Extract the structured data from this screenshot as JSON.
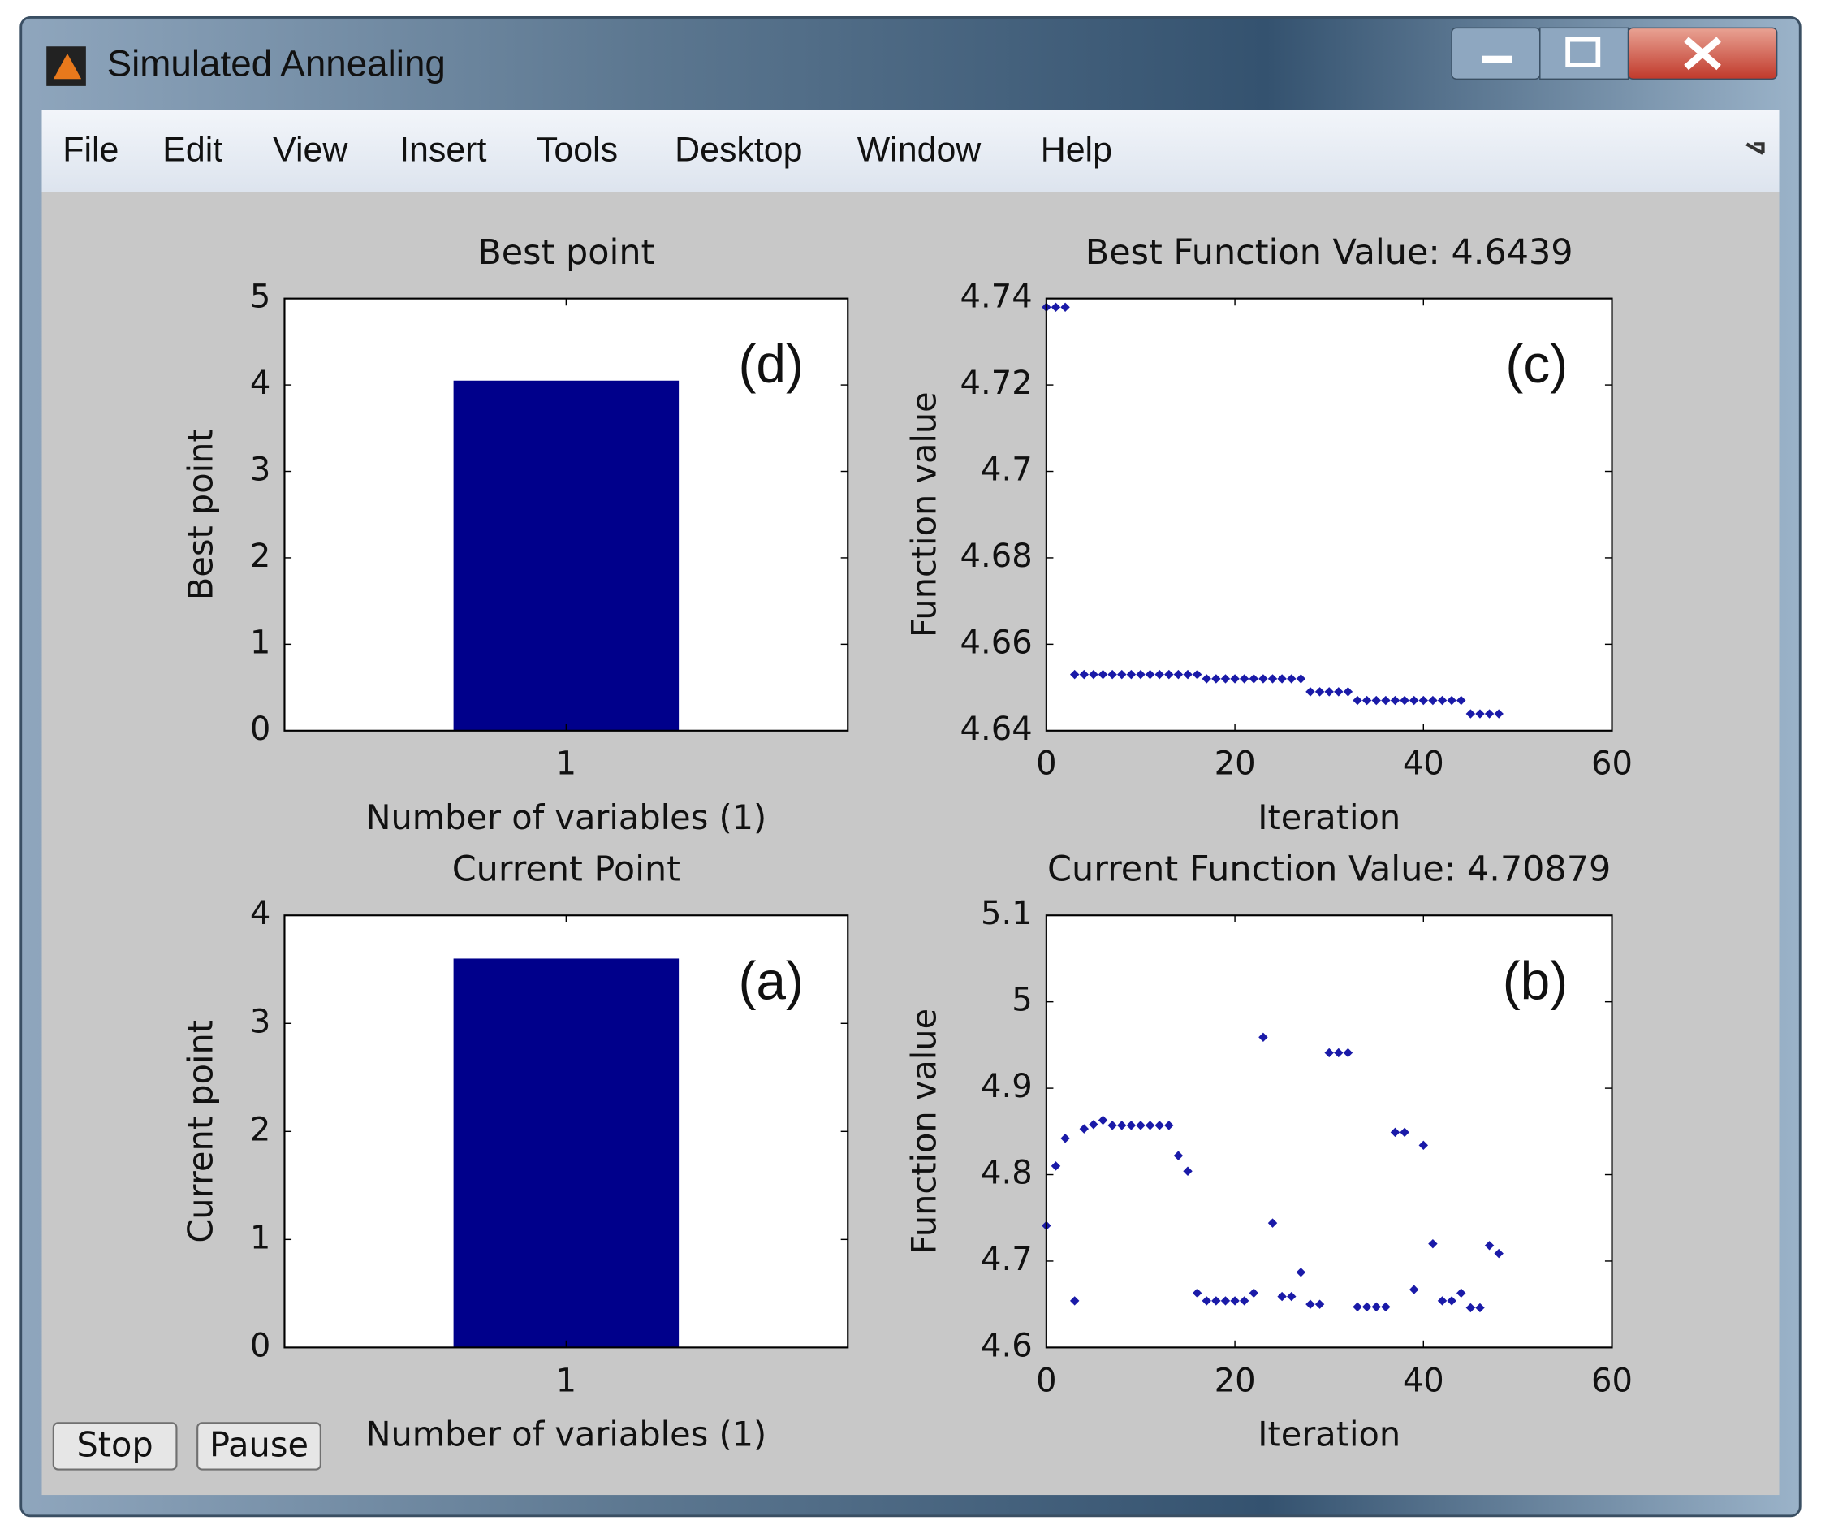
{
  "window": {
    "title": "Simulated Annealing",
    "menu": [
      "File",
      "Edit",
      "View",
      "Insert",
      "Tools",
      "Desktop",
      "Window",
      "Help"
    ],
    "buttons": [
      "Stop",
      "Pause"
    ]
  },
  "chart_data": [
    {
      "type": "bar",
      "title": "Best point",
      "annotation": "(d)",
      "xlabel": "Number of variables (1)",
      "ylabel": "Best point",
      "categories": [
        "1"
      ],
      "values": [
        4.05
      ],
      "color": "#00008b",
      "ylim": [
        0,
        5
      ],
      "yticks": [
        0,
        1,
        2,
        3,
        4,
        5
      ]
    },
    {
      "type": "scatter",
      "title": "Best Function Value: 4.6439",
      "annotation": "(c)",
      "xlabel": "Iteration",
      "ylabel": "Function value",
      "color": "#1a1aa8",
      "xlim": [
        0,
        60
      ],
      "xticks": [
        0,
        20,
        40,
        60
      ],
      "ylim": [
        4.64,
        4.74
      ],
      "yticks": [
        4.64,
        4.66,
        4.68,
        4.7,
        4.72,
        4.74
      ],
      "x": [
        0,
        1,
        2,
        3,
        4,
        5,
        6,
        7,
        8,
        9,
        10,
        11,
        12,
        13,
        14,
        15,
        16,
        17,
        18,
        19,
        20,
        21,
        22,
        23,
        24,
        25,
        26,
        27,
        28,
        29,
        30,
        31,
        32,
        33,
        34,
        35,
        36,
        37,
        38,
        39,
        40,
        41,
        42,
        43,
        44,
        45,
        46,
        47,
        48
      ],
      "values": [
        4.738,
        4.738,
        4.738,
        4.653,
        4.653,
        4.653,
        4.653,
        4.653,
        4.653,
        4.653,
        4.653,
        4.653,
        4.653,
        4.653,
        4.653,
        4.653,
        4.653,
        4.652,
        4.652,
        4.652,
        4.652,
        4.652,
        4.652,
        4.652,
        4.652,
        4.652,
        4.652,
        4.652,
        4.649,
        4.649,
        4.649,
        4.649,
        4.649,
        4.647,
        4.647,
        4.647,
        4.647,
        4.647,
        4.647,
        4.647,
        4.647,
        4.647,
        4.647,
        4.647,
        4.647,
        4.6439,
        4.6439,
        4.6439,
        4.6439
      ]
    },
    {
      "type": "bar",
      "title": "Current Point",
      "annotation": "(a)",
      "xlabel": "Number of variables (1)",
      "ylabel": "Current point",
      "categories": [
        "1"
      ],
      "values": [
        3.6
      ],
      "color": "#00008b",
      "ylim": [
        0,
        4
      ],
      "yticks": [
        0,
        1,
        2,
        3,
        4
      ]
    },
    {
      "type": "scatter",
      "title": "Current Function Value: 4.70879",
      "annotation": "(b)",
      "xlabel": "Iteration",
      "ylabel": "Function value",
      "color": "#1a1aa8",
      "xlim": [
        0,
        60
      ],
      "xticks": [
        0,
        20,
        40,
        60
      ],
      "ylim": [
        4.6,
        5.1
      ],
      "yticks": [
        4.6,
        4.7,
        4.8,
        4.9,
        5,
        5.1
      ],
      "x": [
        0,
        1,
        2,
        3,
        4,
        5,
        6,
        7,
        8,
        9,
        10,
        11,
        12,
        13,
        14,
        15,
        16,
        17,
        18,
        19,
        20,
        21,
        22,
        23,
        24,
        25,
        26,
        27,
        28,
        29,
        30,
        31,
        32,
        33,
        34,
        35,
        36,
        37,
        38,
        39,
        40,
        41,
        42,
        43,
        44,
        45,
        46,
        47,
        48
      ],
      "values": [
        4.741,
        4.81,
        4.842,
        4.654,
        4.853,
        4.858,
        4.863,
        4.857,
        4.857,
        4.857,
        4.857,
        4.857,
        4.857,
        4.857,
        4.822,
        4.804,
        4.663,
        4.654,
        4.654,
        4.654,
        4.654,
        4.654,
        4.663,
        4.959,
        4.744,
        4.659,
        4.659,
        4.687,
        4.65,
        4.65,
        4.941,
        4.941,
        4.941,
        4.647,
        4.647,
        4.647,
        4.647,
        4.849,
        4.849,
        4.667,
        4.834,
        4.72,
        4.654,
        4.654,
        4.663,
        4.646,
        4.646,
        4.718,
        4.70879
      ]
    }
  ]
}
